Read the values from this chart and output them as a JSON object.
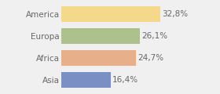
{
  "categories": [
    "America",
    "Europa",
    "Africa",
    "Asia"
  ],
  "values": [
    32.8,
    26.1,
    24.7,
    16.4
  ],
  "labels": [
    "32,8%",
    "26,1%",
    "24,7%",
    "16,4%"
  ],
  "bar_colors": [
    "#f5d98b",
    "#adc18d",
    "#e8b08a",
    "#7a8fc4"
  ],
  "background_color": "#f0f0f0",
  "bar_height": 0.72,
  "label_fontsize": 7.5,
  "tick_fontsize": 7.5,
  "xlim_max": 44
}
